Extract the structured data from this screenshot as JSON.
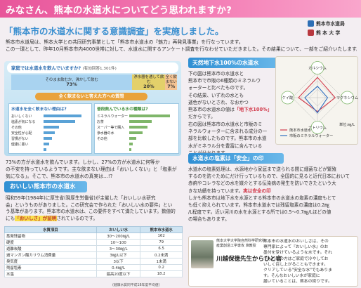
{
  "banner": {
    "title": "みなさん、熊本の水道水についてどう思われますか?"
  },
  "heading": {
    "title": "「熊本市の水道水に関する意識調査」を実施しました。"
  },
  "logos": {
    "bureau": "熊本市水道局",
    "university": "熊 本 大 学"
  },
  "intro": {
    "lines": [
      "熊本市水道局は、熊本大学との共同研究事業として「熊本市水道水の『魅力』再発見事業」を行なっています。",
      "この一環として、昨年10月熊本市内4000世帯に対して、水道水に関するアンケート調査を行なわせていただきました。その結果について、一部をご紹介いたします。"
    ]
  },
  "survey": {
    "question": "家庭では水道水を飲んでいますか?",
    "note": "(有効回答1,301件)",
    "segments": [
      {
        "label": "そのまま飲むか、沸かして飲む",
        "pct": "73%",
        "value": 73
      },
      {
        "label": "浄水器を通して飲む",
        "pct": "20%",
        "value": 20
      },
      {
        "label": "全く飲まない",
        "pct": "7%",
        "value": 7
      }
    ],
    "sub_banner": "全く飲まないと答えた方への質問",
    "left_title": "水道水を全く飲まない理由は?",
    "left_rows": [
      {
        "label": "おいしくない",
        "value": 0.85
      },
      {
        "label": "塩素が気になる",
        "value": 0.7
      },
      {
        "label": "その他",
        "value": 0.35
      },
      {
        "label": "安全性が心配",
        "value": 0.25
      },
      {
        "label": "習慣がない",
        "value": 0.18
      },
      {
        "label": "健康に悪い",
        "value": 0.12
      },
      {
        "label": "",
        "value": 0.06
      }
    ],
    "right_title": "普段飲んでいる水の種類は?",
    "right_rows": [
      {
        "label": "ミネラルウォーター",
        "value": 0.9
      },
      {
        "label": "お茶",
        "value": 0.5
      },
      {
        "label": "スーパー等で購入",
        "value": 0.4
      },
      {
        "label": "浄水器の水",
        "value": 0.3
      },
      {
        "label": "その他",
        "value": 0.15
      },
      {
        "label": "",
        "value": 0.08
      },
      {
        "label": "",
        "value": 0.05
      }
    ]
  },
  "pct_text": {
    "lines": [
      "73%の方が水道水を飲んでいます。しかし、27%の方が水道水に何等か",
      "の不安を持っているようです。主な飲まない理由は「おいしくない」と「塩素が",
      "気になる」。そこで、熊本市の水道水の真実は…!?"
    ]
  },
  "tasty": {
    "header": "おいしい熊本市の水道水",
    "lines": [
      "昭和59年(1984年)に厚生省(現厚生労働省)が主催した「おいしい水研究",
      "会」というものがありました。この研究会で作られた「おいしい水の要件」とい",
      "う基準があります。熊本市の水道水は、この要件をすべて満たしています。数値的",
      "にも"
    ],
    "highlight": "「おいしさ」が証明",
    "after_highlight": "されているのです。"
  },
  "table": {
    "headers": [
      "水質項目",
      "おいしい水",
      "熊本市水道水"
    ],
    "rows": [
      [
        "蒸発残留物",
        "30〜200㎎/L",
        "162"
      ],
      [
        "硬度",
        "10〜100",
        "79"
      ],
      [
        "遊離炭酸",
        "3〜30㎎/L",
        "6.5"
      ],
      [
        "過マンガン酸カリウム消費量",
        "3㎎/L以下",
        "0.2未満"
      ],
      [
        "臭気度",
        "3以下",
        "1未満"
      ],
      [
        "残留塩素",
        "0.4㎎/L",
        "0.2"
      ],
      [
        "水温",
        "最高20度以下",
        "18.2"
      ]
    ],
    "note": "(健康水質同平成18年度平均値)"
  },
  "ground": {
    "header": "天然地下水100%の水道水",
    "lines": [
      "下の図は熊本市の水道水と",
      "熊本市で市販の6種類のミネラルウ",
      "ォーターと比べたものです。",
      "その結果、いずれの水とも",
      "遜色がないとされ、なおかつ",
      "熊本市の水道水の値は"
    ],
    "red_inline": "「地下水100%」",
    "after_red": "だからです。",
    "lines2": [
      "右の図は熊本市の水道水と市販のミ",
      "ネラルウォーターに含まれる成分の一",
      "部を比較したものです。熊本市の水道",
      "水がミネラル分を豊富に含んでいる",
      "ことが分かります。"
    ]
  },
  "radar": {
    "axes": [
      "カルシウム",
      "マグネシウム",
      "ナトリウム",
      "ケイ酸"
    ],
    "series": [
      {
        "name": "熊本市水道水",
        "values": [
          0.8,
          0.7,
          0.55,
          0.75
        ]
      },
      {
        "name": "市販のミネラルウォーター",
        "values": [
          0.45,
          0.4,
          0.6,
          0.5
        ]
      }
    ],
    "unit": "単位:㎎/L",
    "colors": {
      "kumamoto": "#d23b4c",
      "mineral": "#2f6fc0"
    }
  },
  "chlorine": {
    "header": "水道水の塩素は「安全」の印",
    "lines": [
      "水道水の塩素処理は、水源地から家庭まで送られる間に細菌などが繁殖",
      "するのを防ぐためにだけ行っているもので、全国的に見ると近代日本において",
      "赤痢やコレラなどの水を媒介とする伝染病の発生を防いできたという大",
      "きな功績を持っています。"
    ],
    "red_line": "実は安全の印",
    "lines_after": [
      "しかも熊本市は地下水を水源とする熊本市の水道水の塩素の濃度もとて",
      "も低く抑えられています。熊本市水道水では残留塩素の濃度は0.2㎎",
      "/L程度です。近い河川の水を水源とする所では0.5〜0.7㎎/Lほどの値",
      "の場合もあります。"
    ]
  },
  "professor": {
    "affiliation": [
      "熊本大学大学院自然科学研究科",
      "産業創造工学専攻 准教授"
    ],
    "name": "川越保徳先生からひと言",
    "lines": [
      "熊本市の水道水のおいしさは、その",
      "専門家によって『おいしい水』のお",
      "墨付を受けているような水です。それ",
      "でも心配の方はご家庭で冷やしてお",
      "いしく召し上がることもできます。",
      "クリアしている\"安全な水\"でもありま",
      "す。そんなおいしい水が家庭に",
      "届いていることは、熊本の誇りです。"
    ]
  }
}
